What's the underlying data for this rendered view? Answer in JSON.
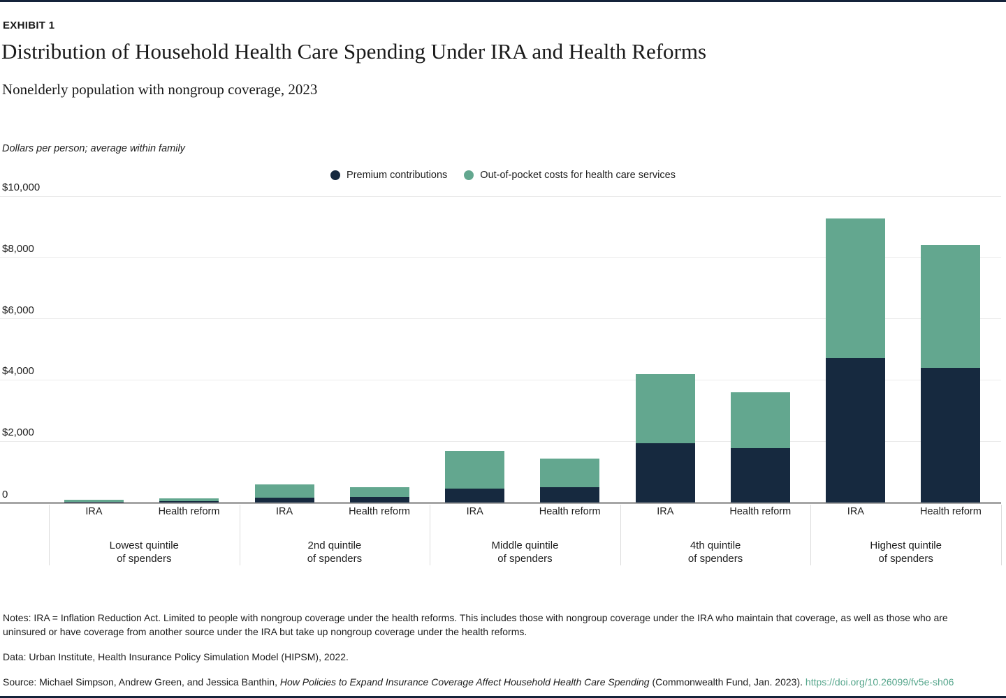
{
  "page": {
    "exhibit_label": "EXHIBIT 1",
    "title": "Distribution of Household Health Care Spending Under IRA and Health Reforms",
    "subtitle": "Nonelderly population with nongroup coverage, 2023",
    "units_note": "Dollars per person; average within family",
    "notes": "Notes: IRA = Inflation Reduction Act. Limited to people with nongroup coverage under the health reforms. This includes those with nongroup coverage under the IRA who maintain that coverage, as well as those who are uninsured or have coverage from another source under the IRA but take up nongroup coverage under the health reforms.",
    "data_line": "Data: Urban Institute, Health Insurance Policy Simulation Model (HIPSM), 2022.",
    "source_prefix": "Source: Michael Simpson, Andrew Green, and Jessica Banthin, ",
    "source_italic": "How Policies to Expand Insurance Coverage Affect Household Health Care Spending",
    "source_suffix": " (Commonwealth Fund, Jan. 2023). ",
    "source_link": "https://doi.org/10.26099/fv5e-sh06"
  },
  "colors": {
    "premium": "#16293f",
    "oop": "#63a78f",
    "link": "#56a68c",
    "gridline": "#ebebeb",
    "axis_line": "#a6a6a6",
    "separator": "#dcdcdc",
    "border": "#14233a"
  },
  "chart_data": {
    "type": "bar",
    "stacked": true,
    "title": "Distribution of Household Health Care Spending Under IRA and Health Reforms",
    "subtitle": "Nonelderly population with nongroup coverage, 2023",
    "ylabel": "Dollars per person; average within family",
    "ylim": [
      0,
      10000
    ],
    "ytick_interval": 2000,
    "ytick_labels": [
      "0",
      "$2,000",
      "$4,000",
      "$6,000",
      "$8,000",
      "$10,000"
    ],
    "grid": true,
    "legend_position": "top-center",
    "legend": [
      {
        "label": "Premium contributions",
        "color": "#16293f",
        "key": "premium"
      },
      {
        "label": "Out-of-pocket costs for health care services",
        "color": "#63a78f",
        "key": "oop"
      }
    ],
    "groups": [
      {
        "label_line1": "Lowest quintile",
        "label_line2": "of spenders",
        "bars": [
          {
            "label": "IRA",
            "premium": 30,
            "oop": 60
          },
          {
            "label": "Health reform",
            "premium": 40,
            "oop": 100
          }
        ]
      },
      {
        "label_line1": "2nd quintile",
        "label_line2": "of spenders",
        "bars": [
          {
            "label": "IRA",
            "premium": 160,
            "oop": 430
          },
          {
            "label": "Health reform",
            "premium": 180,
            "oop": 320
          }
        ]
      },
      {
        "label_line1": "Middle quintile",
        "label_line2": "of spenders",
        "bars": [
          {
            "label": "IRA",
            "premium": 460,
            "oop": 1220
          },
          {
            "label": "Health reform",
            "premium": 510,
            "oop": 920
          }
        ]
      },
      {
        "label_line1": "4th quintile",
        "label_line2": "of spenders",
        "bars": [
          {
            "label": "IRA",
            "premium": 1930,
            "oop": 2260
          },
          {
            "label": "Health reform",
            "premium": 1770,
            "oop": 1840
          }
        ]
      },
      {
        "label_line1": "Highest quintile",
        "label_line2": "of spenders",
        "bars": [
          {
            "label": "IRA",
            "premium": 4720,
            "oop": 4550
          },
          {
            "label": "Health reform",
            "premium": 4400,
            "oop": 4000
          }
        ]
      }
    ]
  }
}
